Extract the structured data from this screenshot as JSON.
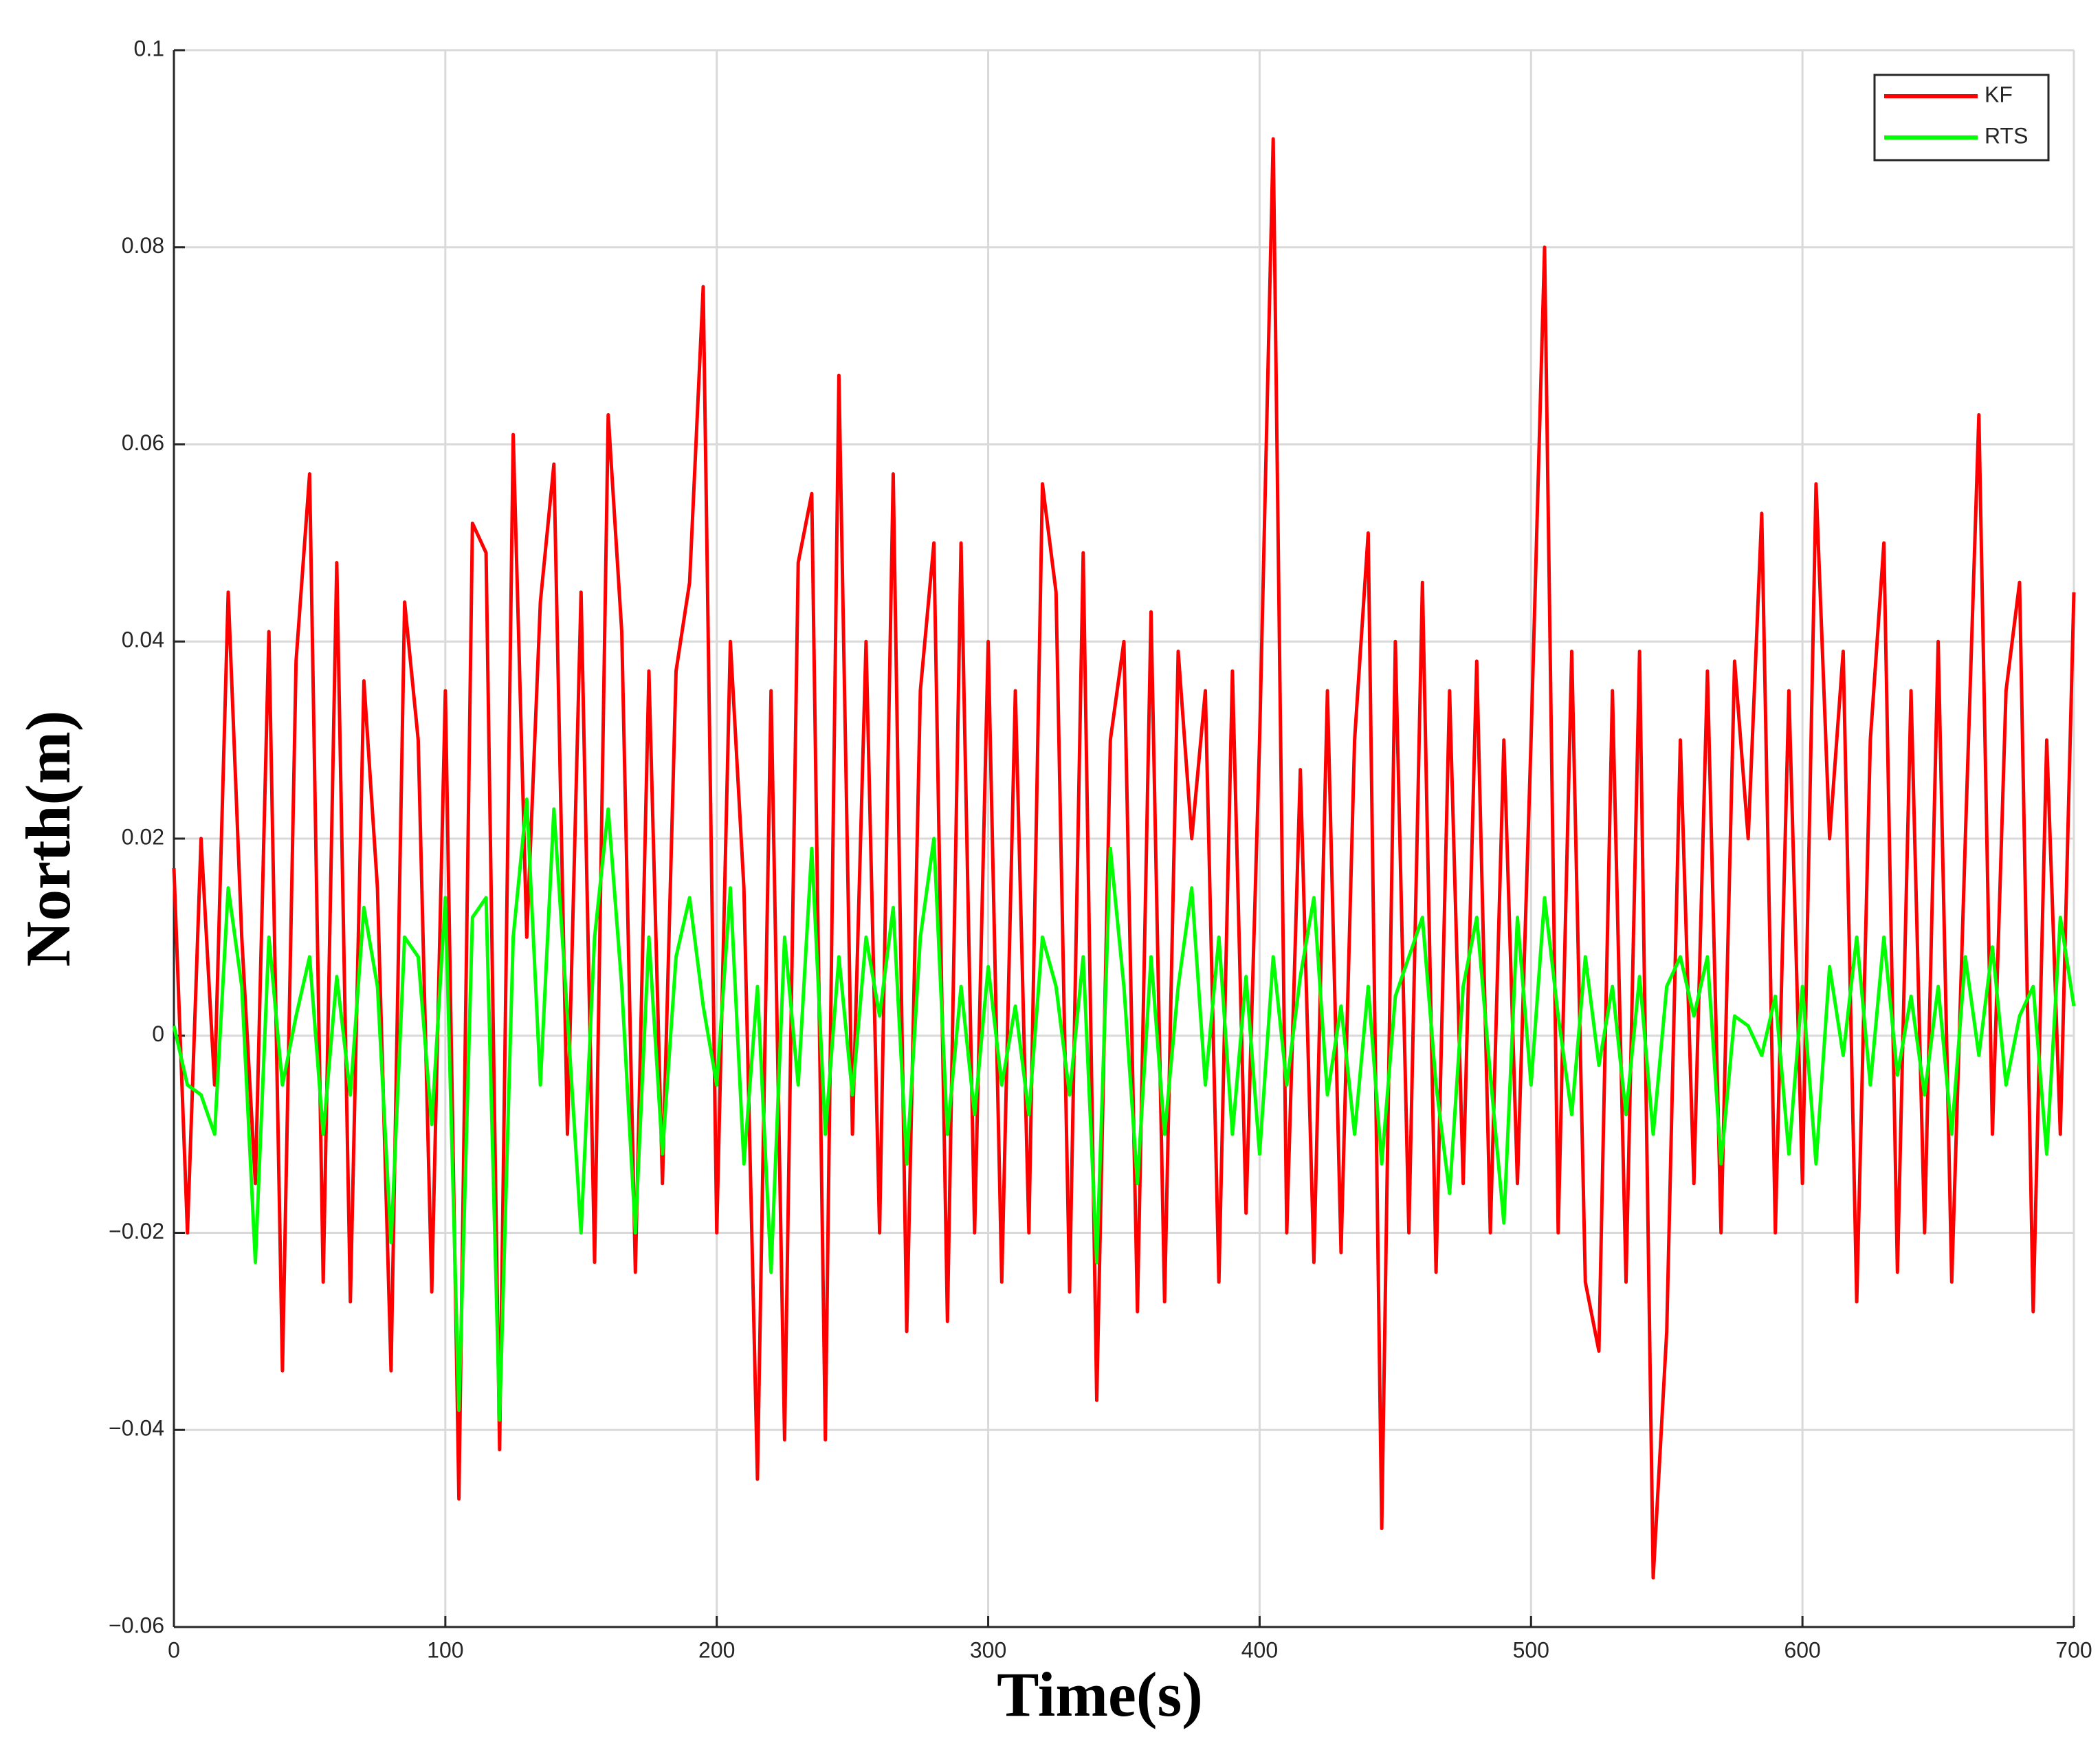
{
  "chart_data": {
    "type": "line",
    "xlabel": "Time(s)",
    "ylabel": "North(m)",
    "x": [
      0,
      5,
      10,
      15,
      20,
      25,
      30,
      35,
      40,
      45,
      50,
      55,
      60,
      65,
      70,
      75,
      80,
      85,
      90,
      95,
      100,
      105,
      110,
      115,
      120,
      125,
      130,
      135,
      140,
      145,
      150,
      155,
      160,
      165,
      170,
      175,
      180,
      185,
      190,
      195,
      200,
      205,
      210,
      215,
      220,
      225,
      230,
      235,
      240,
      245,
      250,
      255,
      260,
      265,
      270,
      275,
      280,
      285,
      290,
      295,
      300,
      305,
      310,
      315,
      320,
      325,
      330,
      335,
      340,
      345,
      350,
      355,
      360,
      365,
      370,
      375,
      380,
      385,
      390,
      395,
      400,
      405,
      410,
      415,
      420,
      425,
      430,
      435,
      440,
      445,
      450,
      455,
      460,
      465,
      470,
      475,
      480,
      485,
      490,
      495,
      500,
      505,
      510,
      515,
      520,
      525,
      530,
      535,
      540,
      545,
      550,
      555,
      560,
      565,
      570,
      575,
      580,
      585,
      590,
      595,
      600,
      605,
      610,
      615,
      620,
      625,
      630,
      635,
      640,
      645,
      650,
      655,
      660,
      665,
      670,
      675,
      680,
      685,
      690,
      695,
      700
    ],
    "series": [
      {
        "name": "KF",
        "color": "#ff0000",
        "values": [
          0.017,
          -0.02,
          0.02,
          -0.005,
          0.045,
          0.01,
          -0.015,
          0.041,
          -0.034,
          0.038,
          0.057,
          -0.025,
          0.048,
          -0.027,
          0.036,
          0.015,
          -0.034,
          0.044,
          0.03,
          -0.026,
          0.035,
          -0.047,
          0.052,
          0.049,
          -0.042,
          0.061,
          0.01,
          0.044,
          0.058,
          -0.01,
          0.045,
          -0.023,
          0.063,
          0.041,
          -0.024,
          0.037,
          -0.015,
          0.037,
          0.046,
          0.076,
          -0.02,
          0.04,
          0.015,
          -0.045,
          0.035,
          -0.041,
          0.048,
          0.055,
          -0.041,
          0.067,
          -0.01,
          0.04,
          -0.02,
          0.057,
          -0.03,
          0.035,
          0.05,
          -0.029,
          0.05,
          -0.02,
          0.04,
          -0.025,
          0.035,
          -0.02,
          0.056,
          0.045,
          -0.026,
          0.049,
          -0.037,
          0.03,
          0.04,
          -0.028,
          0.043,
          -0.027,
          0.039,
          0.02,
          0.035,
          -0.025,
          0.037,
          -0.018,
          0.03,
          0.091,
          -0.02,
          0.027,
          -0.023,
          0.035,
          -0.022,
          0.03,
          0.051,
          -0.05,
          0.04,
          -0.02,
          0.046,
          -0.024,
          0.035,
          -0.015,
          0.038,
          -0.02,
          0.03,
          -0.015,
          0.03,
          0.08,
          -0.02,
          0.039,
          -0.025,
          -0.032,
          0.035,
          -0.025,
          0.039,
          -0.055,
          -0.03,
          0.03,
          -0.015,
          0.037,
          -0.02,
          0.038,
          0.02,
          0.053,
          -0.02,
          0.035,
          -0.015,
          0.056,
          0.02,
          0.039,
          -0.027,
          0.03,
          0.05,
          -0.024,
          0.035,
          -0.02,
          0.04,
          -0.025,
          0.02,
          0.063,
          -0.01,
          0.035,
          0.046,
          -0.028,
          0.03,
          -0.01,
          0.045
        ]
      },
      {
        "name": "RTS",
        "color": "#00ff00",
        "values": [
          0.001,
          -0.005,
          -0.006,
          -0.01,
          0.015,
          0.005,
          -0.023,
          0.01,
          -0.005,
          0.002,
          0.008,
          -0.01,
          0.006,
          -0.006,
          0.013,
          0.005,
          -0.021,
          0.01,
          0.008,
          -0.009,
          0.014,
          -0.038,
          0.012,
          0.014,
          -0.039,
          0.01,
          0.024,
          -0.005,
          0.023,
          0.002,
          -0.02,
          0.01,
          0.023,
          0.005,
          -0.02,
          0.01,
          -0.012,
          0.008,
          0.014,
          0.003,
          -0.005,
          0.015,
          -0.013,
          0.005,
          -0.024,
          0.01,
          -0.005,
          0.019,
          -0.01,
          0.008,
          -0.006,
          0.01,
          0.002,
          0.013,
          -0.013,
          0.01,
          0.02,
          -0.01,
          0.005,
          -0.008,
          0.007,
          -0.005,
          0.003,
          -0.008,
          0.01,
          0.005,
          -0.006,
          0.008,
          -0.023,
          0.019,
          0.005,
          -0.015,
          0.008,
          -0.01,
          0.005,
          0.015,
          -0.005,
          0.01,
          -0.01,
          0.006,
          -0.012,
          0.008,
          -0.005,
          0.006,
          0.014,
          -0.006,
          0.003,
          -0.01,
          0.005,
          -0.013,
          0.004,
          0.008,
          0.012,
          -0.005,
          -0.016,
          0.005,
          0.012,
          -0.004,
          -0.019,
          0.012,
          -0.005,
          0.014,
          0.002,
          -0.008,
          0.008,
          -0.003,
          0.005,
          -0.008,
          0.006,
          -0.01,
          0.005,
          0.008,
          0.002,
          0.008,
          -0.013,
          0.002,
          0.001,
          -0.002,
          0.004,
          -0.012,
          0.005,
          -0.013,
          0.007,
          -0.002,
          0.01,
          -0.005,
          0.01,
          -0.004,
          0.004,
          -0.006,
          0.005,
          -0.01,
          0.008,
          -0.002,
          0.009,
          -0.005,
          0.002,
          0.005,
          -0.012,
          0.012,
          0.003
        ]
      }
    ],
    "xlim": [
      0,
      700
    ],
    "xticks": [
      0,
      100,
      200,
      300,
      400,
      500,
      600,
      700
    ],
    "ylim": [
      -0.06,
      0.1
    ],
    "yticks": [
      {
        "value": -0.06,
        "label": "−0.06"
      },
      {
        "value": -0.04,
        "label": "−0.04"
      },
      {
        "value": -0.02,
        "label": "−0.02"
      },
      0,
      0.02,
      0.04,
      0.06,
      0.08,
      0.1
    ],
    "grid": true,
    "legend": "upper-right"
  }
}
